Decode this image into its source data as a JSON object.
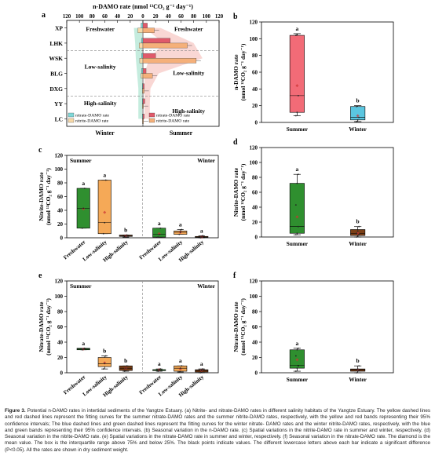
{
  "caption": {
    "label": "Figure 3.",
    "text": "Potential n-DAMO rates in intertidal sediments of the Yangtze Estuary. (a) Nitrite- and nitrate-DAMO rates in different salinity habitats of the Yangtze Estuary. The yellow dashed lines and red dashed lines represent the fitting curves for the summer nitrate-DAMO rates and the summer nitrite-DAMO rates, respectively, with the yellow and red bands representing their 95% confidence intervals; The blue dashed lines and green dashed lines represent the fitting curves for the winter nitrate- DAMO rates and the winter nitrite-DAMO rates, respectively, with the blue and green bands representing their 95% confidence intervals. (b) Seasonal variation in the n-DAMO rate. (c) Spatial variations in the nitrite-DAMO rate in summer and winter, respectively. (d) Seasonal variation in the nitrite-DAMO rate. (e) Spatial variations in the nitrate-DAMO rate in summer and winter, respectively. (f) Seasonal variation in the nitrate-DAMO rate. The diamond is the mean value. The box is the interquartile range above 75% and below 25%. The black points indicate values. The different lowercase letters above each bar indicate a significant difference (P<0.05). All the rates are shown in dry sediment weight."
  },
  "chart_data": [
    {
      "panel": "a",
      "type": "bar",
      "orientation": "horizontal-back-to-back",
      "title": "n-DAMO rate (nmol ¹³CO₂ g⁻¹ day⁻¹)",
      "top_ticks": [
        "120",
        "100",
        "80",
        "60",
        "40",
        "20",
        "0",
        "20",
        "40",
        "60",
        "80",
        "100",
        "120"
      ],
      "sites": [
        "XP",
        "LHK",
        "WSK",
        "BLG",
        "DXG",
        "YY",
        "LC"
      ],
      "zones": [
        "Freshwater",
        "Low-salinity",
        "High-salinity"
      ],
      "season_labels": [
        "Winter",
        "Summer"
      ],
      "legend_winter": [
        "nitrate-DAMO rate",
        "nitrite-DAMO rate"
      ],
      "legend_summer": [
        "nitrate-DAMO rate",
        "nitrite-DAMO rate"
      ],
      "colors": {
        "winter_nitrate": "#7fd8d8",
        "winter_nitrite": "#f7d9a8",
        "summer_nitrate": "#e05a6a",
        "summer_nitrite": "#f5b07a",
        "band_summer": "#f4b6b0",
        "band_winter": "#9fe0c8"
      },
      "winter_nitrate": [
        3,
        2,
        2,
        2,
        1,
        1,
        1
      ],
      "winter_nitrite": [
        8,
        6,
        5,
        3,
        1,
        1,
        1
      ],
      "summer_nitrate": [
        7,
        43,
        20,
        5,
        2,
        3,
        2
      ],
      "summer_nitrite": [
        18,
        70,
        84,
        15,
        2,
        1,
        1
      ]
    },
    {
      "panel": "b",
      "type": "box",
      "ylabel": "n-DAMO rate (nmol ¹³CO₂ g⁻¹ day⁻¹)",
      "ylim": [
        0,
        120
      ],
      "yticks": [
        "0",
        "20",
        "40",
        "60",
        "80",
        "100",
        "120"
      ],
      "categories": [
        "Summer",
        "Winter"
      ],
      "colors": [
        "#f26b77",
        "#5bc6e0"
      ],
      "boxes": [
        {
          "min": 8,
          "q1": 12,
          "median": 32,
          "q3": 104,
          "max": 106,
          "mean": 44,
          "letter": "a",
          "points": [
            8,
            12,
            32,
            104,
            105
          ]
        },
        {
          "min": 1,
          "q1": 3,
          "median": 6,
          "q3": 19,
          "max": 20,
          "mean": 8,
          "letter": "b",
          "points": [
            1,
            3,
            6,
            19
          ]
        }
      ]
    },
    {
      "panel": "c",
      "type": "box",
      "ylabel": "Nitrite-DAMO rate (nmol ¹³CO₂ g⁻¹ day⁻¹)",
      "ylim": [
        0,
        120
      ],
      "yticks": [
        "0",
        "20",
        "40",
        "60",
        "80",
        "100",
        "120"
      ],
      "groups": [
        "Summer",
        "Winter"
      ],
      "categories": [
        "Freshwater",
        "Low-salinity",
        "High-salinity",
        "Freshwater",
        "Low-salinity",
        "High-salinity"
      ],
      "colors": [
        "#2f8f2f",
        "#f5a957",
        "#7b3f16",
        "#2f8f2f",
        "#f5a957",
        "#7b3f16"
      ],
      "boxes": [
        {
          "min": 14,
          "q1": 14,
          "median": 43,
          "q3": 72,
          "max": 72,
          "mean": 42,
          "letter": "a",
          "points": [
            14,
            43,
            72
          ]
        },
        {
          "min": 6,
          "q1": 6,
          "median": 22,
          "q3": 84,
          "max": 84,
          "mean": 37,
          "letter": "a",
          "points": [
            6,
            22,
            84
          ]
        },
        {
          "min": 1,
          "q1": 2,
          "median": 3,
          "q3": 4,
          "max": 4,
          "mean": 3,
          "letter": "b",
          "points": [
            1,
            3,
            4
          ]
        },
        {
          "min": 1,
          "q1": 1,
          "median": 5,
          "q3": 14,
          "max": 14,
          "mean": 6,
          "letter": "a",
          "points": [
            1,
            5,
            14
          ]
        },
        {
          "min": 5,
          "q1": 5,
          "median": 8,
          "q3": 10,
          "max": 12,
          "mean": 8,
          "letter": "a",
          "points": [
            5,
            8,
            12
          ]
        },
        {
          "min": 0,
          "q1": 1,
          "median": 1,
          "q3": 2,
          "max": 3,
          "mean": 1,
          "letter": "a",
          "points": [
            0,
            1,
            3
          ]
        }
      ]
    },
    {
      "panel": "d",
      "type": "box",
      "ylabel": "Nitrite-DAMO rate (nmol ¹³CO₂ g⁻¹ day⁻¹)",
      "ylim": [
        0,
        120
      ],
      "yticks": [
        "0",
        "20",
        "40",
        "60",
        "80",
        "100",
        "120"
      ],
      "categories": [
        "Summer",
        "Winter"
      ],
      "colors": [
        "#2f8f2f",
        "#7b3f16"
      ],
      "boxes": [
        {
          "min": 3,
          "q1": 5,
          "median": 14,
          "q3": 72,
          "max": 84,
          "mean": 27,
          "letter": "a",
          "points": [
            3,
            5,
            14,
            43,
            72,
            84
          ]
        },
        {
          "min": 0,
          "q1": 2,
          "median": 5,
          "q3": 10,
          "max": 14,
          "mean": 5,
          "letter": "b",
          "points": [
            0,
            1,
            3,
            5,
            8,
            14
          ]
        }
      ]
    },
    {
      "panel": "e",
      "type": "box",
      "ylabel": "Nitrate-DAMO rate (nmol ¹³CO₂ g⁻¹ day⁻¹)",
      "ylim": [
        0,
        120
      ],
      "yticks": [
        "0",
        "20",
        "40",
        "60",
        "80",
        "100",
        "120"
      ],
      "groups": [
        "Summer",
        "Winter"
      ],
      "categories": [
        "Freshwater",
        "Low-salinity",
        "High-salinity",
        "Freshwater",
        "Low-salinity",
        "High-salinity"
      ],
      "colors": [
        "#2f8f2f",
        "#f5a957",
        "#7b3f16",
        "#2f8f2f",
        "#f5a957",
        "#7b3f16"
      ],
      "boxes": [
        {
          "min": 30,
          "q1": 30,
          "median": 31,
          "q3": 32,
          "max": 32,
          "mean": 31,
          "letter": "a",
          "points": [
            30,
            31,
            32
          ]
        },
        {
          "min": 5,
          "q1": 8,
          "median": 12,
          "q3": 20,
          "max": 22,
          "mean": 13,
          "letter": "b",
          "points": [
            5,
            12,
            22
          ]
        },
        {
          "min": 2,
          "q1": 3,
          "median": 6,
          "q3": 9,
          "max": 9,
          "mean": 6,
          "letter": "b",
          "points": [
            2,
            6,
            9
          ]
        },
        {
          "min": 2,
          "q1": 3,
          "median": 4,
          "q3": 4,
          "max": 5,
          "mean": 4,
          "letter": "a",
          "points": [
            2,
            4,
            5
          ]
        },
        {
          "min": 1,
          "q1": 2,
          "median": 6,
          "q3": 9,
          "max": 9,
          "mean": 5,
          "letter": "a",
          "points": [
            1,
            6,
            9
          ]
        },
        {
          "min": 0,
          "q1": 1,
          "median": 3,
          "q3": 4,
          "max": 5,
          "mean": 3,
          "letter": "a",
          "points": [
            0,
            3,
            5
          ]
        }
      ]
    },
    {
      "panel": "f",
      "type": "box",
      "ylabel": "Nitrate-DAMO rate (nmol ¹³CO₂ g⁻¹ day⁻¹)",
      "ylim": [
        0,
        120
      ],
      "yticks": [
        "0",
        "20",
        "40",
        "60",
        "80",
        "100",
        "120"
      ],
      "categories": [
        "Summer",
        "Winter"
      ],
      "colors": [
        "#2f8f2f",
        "#7b3f16"
      ],
      "boxes": [
        {
          "min": 2,
          "q1": 6,
          "median": 10,
          "q3": 30,
          "max": 32,
          "mean": 17,
          "letter": "a",
          "points": [
            2,
            6,
            9,
            22,
            30,
            32
          ]
        },
        {
          "min": 0,
          "q1": 2,
          "median": 4,
          "q3": 5,
          "max": 9,
          "mean": 4,
          "letter": "b",
          "points": [
            0,
            2,
            3,
            4,
            5,
            9
          ]
        }
      ]
    }
  ]
}
